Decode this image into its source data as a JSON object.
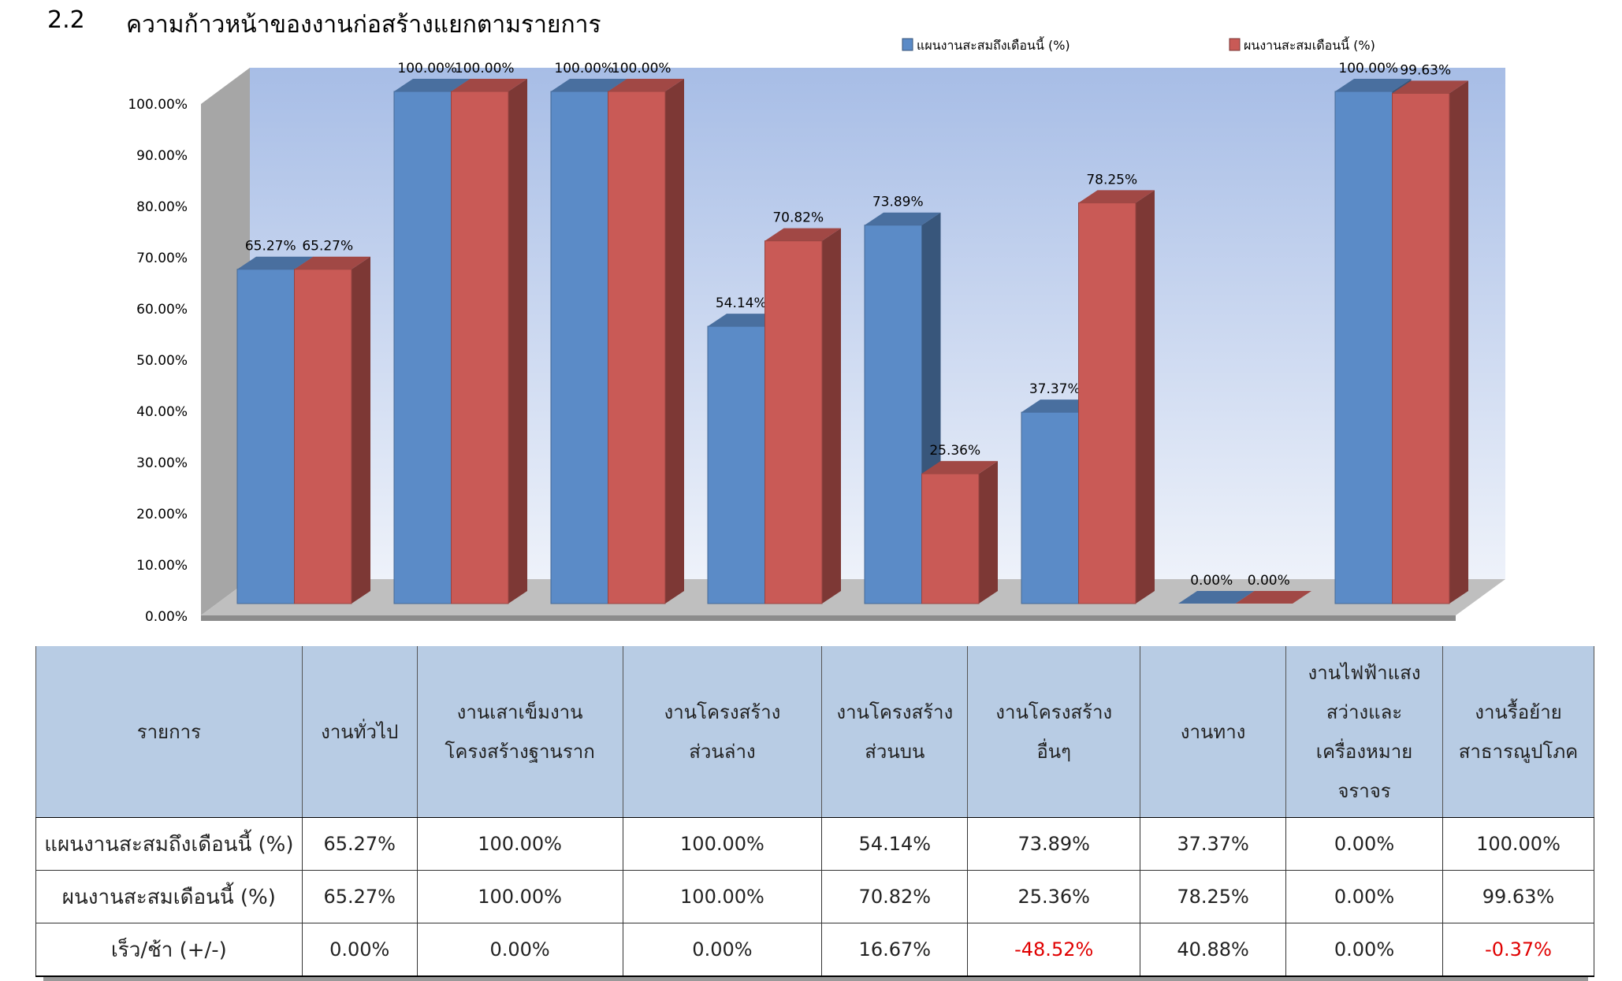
{
  "section_number": "2.2",
  "section_title": "ความก้าวหน้าของงานก่อสร้างแยกตามรายการ",
  "chart_data": {
    "type": "bar",
    "title": "",
    "categories": [
      "งานทั่วไป",
      "งานเสาเข็มงานโครงสร้างฐานราก",
      "งานโครงสร้างส่วนล่าง",
      "งานโครงสร้างส่วนบน",
      "งานโครงสร้างอื่นๆ",
      "งานทาง",
      "งานไฟฟ้าแสงสว่างและเครื่องหมายจราจร",
      "งานรื้อย้ายสาธารณูปโภค"
    ],
    "series": [
      {
        "name": "แผนงานสะสมถึงเดือนนี้ (%)",
        "color": "#5b8bc7",
        "values": [
          65.27,
          100.0,
          100.0,
          54.14,
          73.89,
          37.37,
          0.0,
          100.0
        ],
        "labels": [
          "65.27%",
          "100.00%",
          "100.00%",
          "54.14%",
          "73.89%",
          "37.37%",
          "0.00%",
          "100.00%"
        ]
      },
      {
        "name": "ผนงานสะสมเดือนนี้ (%)",
        "color": "#c95a56",
        "values": [
          65.27,
          100.0,
          100.0,
          70.82,
          25.36,
          78.25,
          0.0,
          99.63
        ],
        "labels": [
          "65.27%",
          "100.00%",
          "100.00%",
          "70.82%",
          "25.36%",
          "78.25%",
          "0.00%",
          "99.63%"
        ]
      }
    ],
    "yticks": [
      "0.00%",
      "10.00%",
      "20.00%",
      "30.00%",
      "40.00%",
      "50.00%",
      "60.00%",
      "70.00%",
      "80.00%",
      "90.00%",
      "100.00%"
    ],
    "ylim": [
      0,
      100
    ],
    "legend": "top-right",
    "grid": false
  },
  "table": {
    "header": [
      "รายการ",
      "งานทั่วไป",
      "งานเสาเข็มงาน\nโครงสร้างฐานราก",
      "งานโครงสร้าง\nส่วนล่าง",
      "งานโครงสร้าง\nส่วนบน",
      "งานโครงสร้าง\nอื่นๆ",
      "งานทาง",
      "งานไฟฟ้าแสง\nสว่างและ\nเครื่องหมาย\nจราจร",
      "งานรื้อย้าย\nสาธารณูปโภค"
    ],
    "rows": [
      [
        "แผนงานสะสมถึงเดือนนี้ (%)",
        "65.27%",
        "100.00%",
        "100.00%",
        "54.14%",
        "73.89%",
        "37.37%",
        "0.00%",
        "100.00%"
      ],
      [
        "ผนงานสะสมเดือนนี้ (%)",
        "65.27%",
        "100.00%",
        "100.00%",
        "70.82%",
        "25.36%",
        "78.25%",
        "0.00%",
        "99.63%"
      ],
      [
        "เร็ว/ช้า (+/-)",
        "0.00%",
        "0.00%",
        "0.00%",
        "16.67%",
        "-48.52%",
        "40.88%",
        "0.00%",
        "-0.37%"
      ]
    ]
  }
}
